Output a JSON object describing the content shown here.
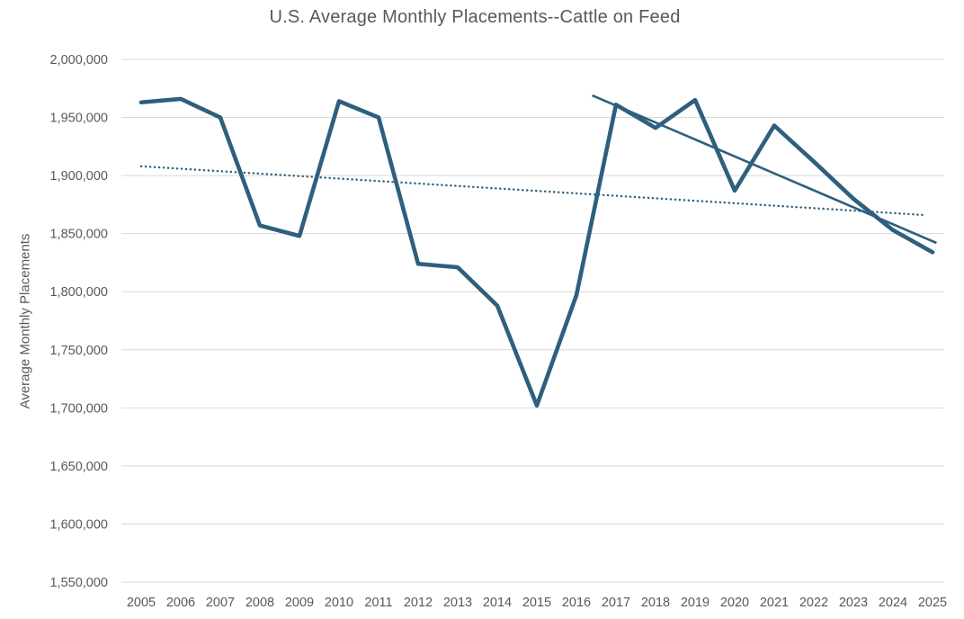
{
  "chart_data": {
    "type": "line",
    "title": "U.S. Average Monthly Placements--Cattle on Feed",
    "xlabel": "",
    "ylabel": "Average Monthly Placements",
    "ylim": [
      1550000,
      2000000
    ],
    "ytick_step": 50000,
    "grid": true,
    "legend": "none",
    "categories": [
      2005,
      2006,
      2007,
      2008,
      2009,
      2010,
      2011,
      2012,
      2013,
      2014,
      2015,
      2016,
      2017,
      2018,
      2019,
      2020,
      2021,
      2022,
      2023,
      2024,
      2025
    ],
    "values": [
      1963000,
      1966000,
      1950000,
      1857000,
      1848000,
      1964000,
      1950000,
      1824000,
      1821000,
      1788000,
      1702000,
      1797000,
      1961000,
      1941000,
      1965000,
      1887000,
      1943000,
      1912000,
      1880000,
      1853000,
      1834000
    ],
    "trendlines": [
      {
        "kind": "overall-linear-trendline",
        "style": "dotted",
        "start_year": 2005,
        "start_value": 1908000,
        "end_year": 2024.8,
        "end_value": 1866000
      },
      {
        "kind": "recent-linear-trendline",
        "style": "solid",
        "start_year": 2016.4,
        "start_value": 1969000,
        "end_year": 2025.1,
        "end_value": 1842000
      }
    ],
    "colors": {
      "line": "#2E5F7E",
      "gridline": "#D9D9D9",
      "text": "#595959",
      "background": "#FFFFFF"
    }
  }
}
